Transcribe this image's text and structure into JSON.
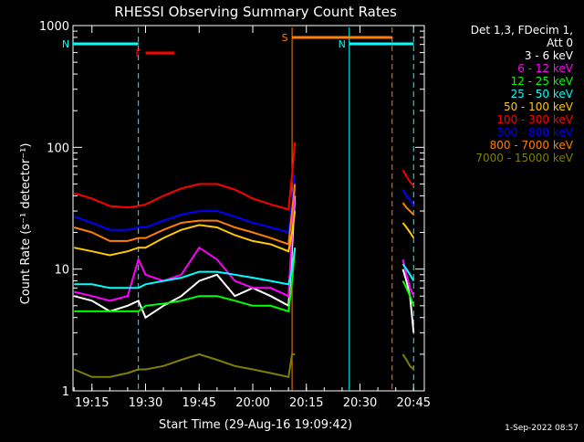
{
  "colors": {
    "background": "#000000",
    "axes": "#ffffff",
    "attenuator_state_line": "#00ffff",
    "night_marker": "#00ffff",
    "saa_marker": "#ff7f00",
    "flare_marker": "#ff0000"
  },
  "chart_data": {
    "type": "line",
    "title": "RHESSI Observing Summary Count Rates",
    "xlabel": "Start Time (29-Aug-16 19:09:42)",
    "ylabel": "Count Rate (s⁻¹ detector⁻¹)",
    "y_scale": "log",
    "ylim": [
      1,
      1000
    ],
    "xlim": [
      "19:09:42",
      "20:48:00"
    ],
    "x_ticks": [
      "19:15",
      "19:30",
      "19:45",
      "20:00",
      "20:15",
      "20:30",
      "20:45"
    ],
    "y_ticks": [
      "1",
      "10",
      "100",
      "1000"
    ],
    "grid": false,
    "legend_position": "top-right",
    "legend_header": [
      "Det 1,3, FDecim 1,",
      "Att 0"
    ],
    "timestamp": "1-Sep-2022 08:57",
    "sample_times": [
      "19:10",
      "19:15",
      "19:20",
      "19:25",
      "19:28",
      "19:30",
      "19:35",
      "19:40",
      "19:45",
      "19:50",
      "19:55",
      "20:00",
      "20:05",
      "20:10",
      "20:11",
      "20:11.8",
      "20:40",
      "20:41",
      "20:42",
      "20:43",
      "20:44",
      "20:45"
    ],
    "series": [
      {
        "name": "3 - 6 keV",
        "color": "#ffffff",
        "values": [
          6,
          5.5,
          4.5,
          5,
          5.5,
          4,
          5,
          6,
          8,
          9,
          6,
          7,
          6,
          5,
          15,
          40,
          0,
          0,
          10,
          8,
          6,
          3
        ]
      },
      {
        "name": "6 - 12 keV",
        "color": "#ff00ff",
        "values": [
          6.5,
          6,
          5.5,
          6,
          12,
          9,
          8,
          9,
          15,
          12,
          8,
          7,
          7,
          6,
          20,
          50,
          0,
          0,
          12,
          9,
          7,
          6
        ]
      },
      {
        "name": "12 - 25 keV",
        "color": "#00ff00",
        "values": [
          4.5,
          4.5,
          4.5,
          4.5,
          4.5,
          5,
          5.2,
          5.5,
          6,
          6,
          5.5,
          5,
          5,
          4.5,
          8,
          15,
          0,
          0,
          8,
          7,
          6,
          5
        ]
      },
      {
        "name": "25 - 50 keV",
        "color": "#00ffff",
        "values": [
          7.5,
          7.5,
          7,
          7,
          7,
          7.5,
          8,
          8.5,
          9.5,
          9.5,
          9,
          8.5,
          8,
          7.5,
          10,
          15,
          0,
          0,
          11,
          10,
          9,
          8
        ]
      },
      {
        "name": "50 - 100 keV",
        "color": "#ffc800",
        "values": [
          15,
          14,
          13,
          14,
          15,
          15,
          18,
          21,
          23,
          22,
          19,
          17,
          16,
          14,
          20,
          30,
          0,
          0,
          24,
          22,
          20,
          18
        ]
      },
      {
        "name": "100 - 300 keV",
        "color": "#ff0000",
        "values": [
          42,
          38,
          33,
          32,
          33,
          34,
          40,
          46,
          50,
          50,
          45,
          38,
          34,
          31,
          60,
          110,
          0,
          0,
          65,
          58,
          52,
          48
        ]
      },
      {
        "name": "300 - 800 keV",
        "color": "#0000ff",
        "values": [
          27,
          24,
          21,
          21,
          22,
          22,
          25,
          28,
          30,
          30,
          27,
          24,
          22,
          20,
          35,
          60,
          0,
          0,
          45,
          40,
          37,
          33
        ]
      },
      {
        "name": "800 - 7000 keV",
        "color": "#ff7f00",
        "values": [
          22,
          20,
          17,
          17,
          18,
          18,
          21,
          24,
          25,
          25,
          22,
          20,
          18,
          16,
          30,
          50,
          0,
          0,
          35,
          32,
          30,
          28
        ]
      },
      {
        "name": "7000 - 15000 keV",
        "color": "#7f7f00",
        "values": [
          1.5,
          1.3,
          1.3,
          1.4,
          1.5,
          1.5,
          1.6,
          1.8,
          2,
          1.8,
          1.6,
          1.5,
          1.4,
          1.3,
          2,
          2,
          0,
          0,
          2,
          1.8,
          1.6,
          1.5
        ]
      }
    ],
    "flags": [
      {
        "label": "N",
        "color": "#00ffff",
        "start": "19:09:42",
        "end": "19:28:00",
        "style": "line"
      },
      {
        "label": "N",
        "color": "#00ffff",
        "start": "20:27:00",
        "end": "20:45:00",
        "style": "line"
      },
      {
        "label": "F",
        "color": "#ff0000",
        "start": "19:30:00",
        "end": "19:38:00",
        "style": "line"
      },
      {
        "label": "S",
        "color": "#ff7f00",
        "start": "20:11:00",
        "end": "20:39:00",
        "style": "line"
      }
    ],
    "markers": [
      {
        "time": "19:28:00",
        "color": "#00ffff",
        "dash": true
      },
      {
        "time": "20:11:00",
        "color": "#ff7f00",
        "dash": false
      },
      {
        "time": "20:27:00",
        "color": "#00ffff",
        "dash": false
      },
      {
        "time": "20:39:00",
        "color": "#ff7f00",
        "dash": true
      },
      {
        "time": "20:45:00",
        "color": "#00ffff",
        "dash": true
      }
    ]
  }
}
